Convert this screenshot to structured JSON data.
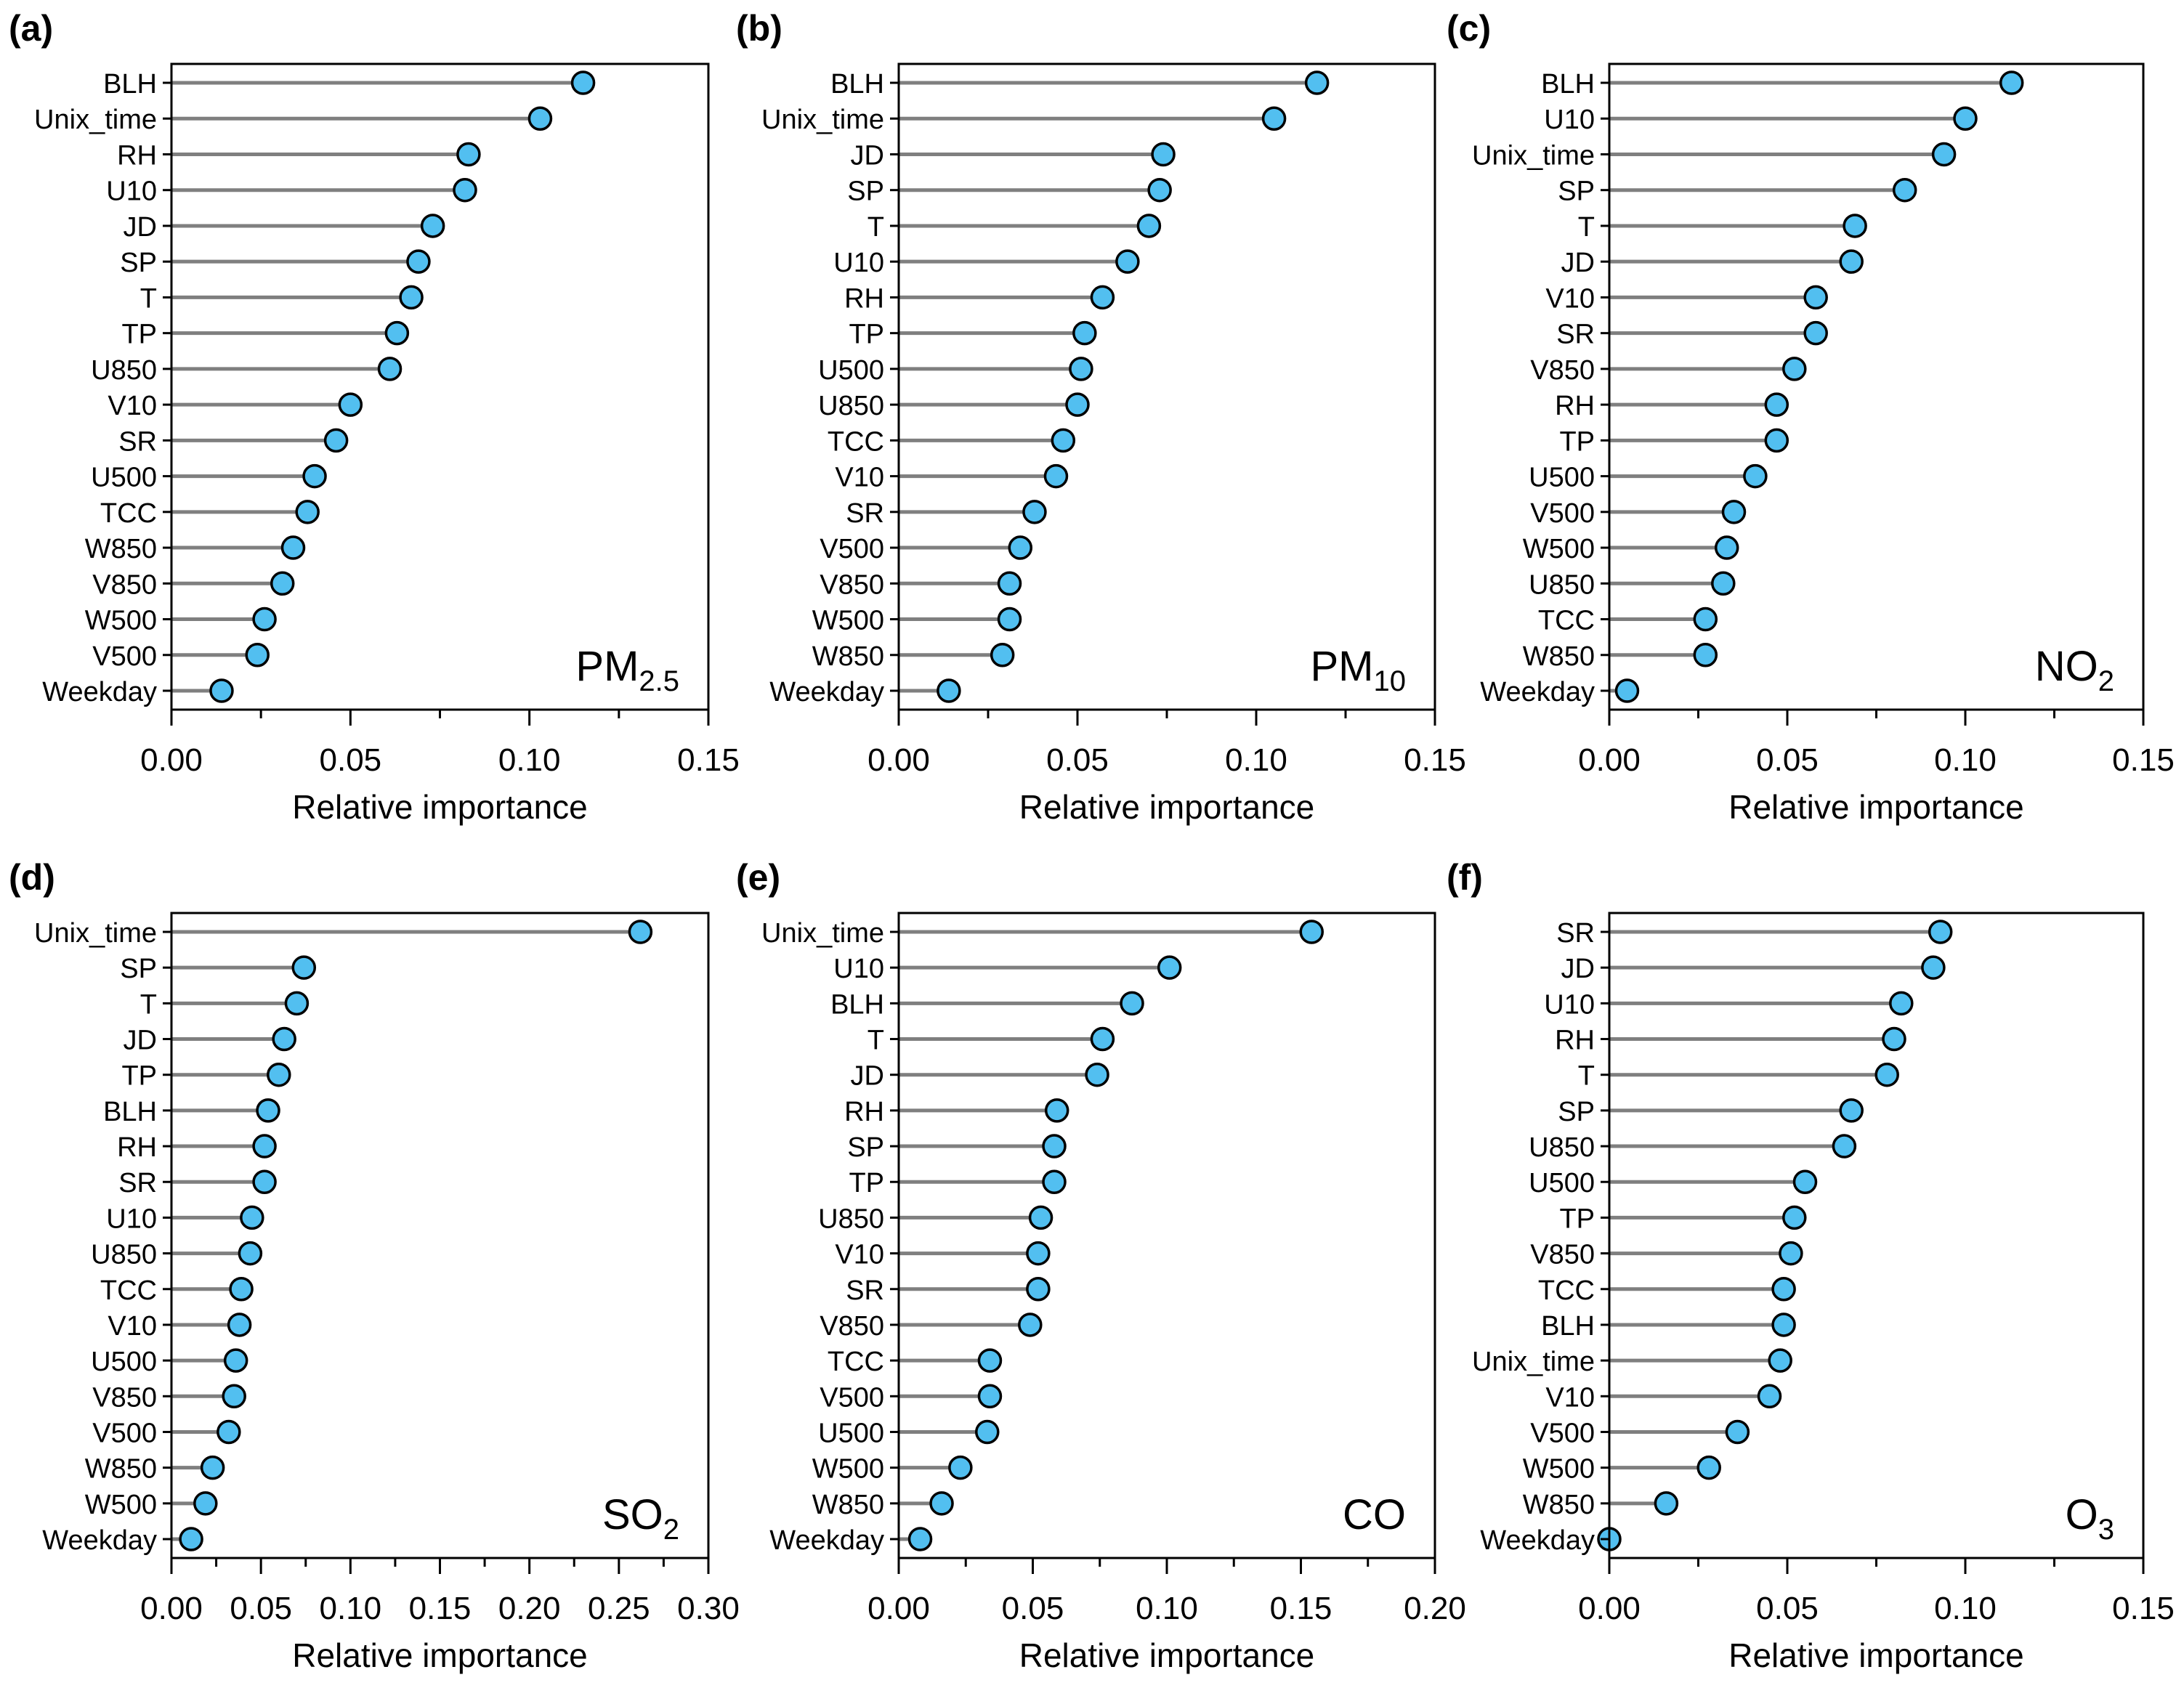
{
  "chart_data": [
    {
      "type": "lollipop",
      "panel": "(a)",
      "pollutant": "PM",
      "pollutant_sub": "2.5",
      "xlabel": "Relative importance",
      "xlim": [
        0,
        0.15
      ],
      "xticks": [
        "0.00",
        "0.05",
        "0.10",
        "0.15"
      ],
      "categories": [
        "BLH",
        "Unix_time",
        "RH",
        "U10",
        "JD",
        "SP",
        "T",
        "TP",
        "U850",
        "V10",
        "SR",
        "U500",
        "TCC",
        "W850",
        "V850",
        "W500",
        "V500",
        "Weekday"
      ],
      "values": [
        0.115,
        0.103,
        0.083,
        0.082,
        0.073,
        0.069,
        0.067,
        0.063,
        0.061,
        0.05,
        0.046,
        0.04,
        0.038,
        0.034,
        0.031,
        0.026,
        0.024,
        0.014
      ]
    },
    {
      "type": "lollipop",
      "panel": "(b)",
      "pollutant": "PM",
      "pollutant_sub": "10",
      "xlabel": "Relative importance",
      "xlim": [
        0,
        0.15
      ],
      "xticks": [
        "0.00",
        "0.05",
        "0.10",
        "0.15"
      ],
      "categories": [
        "BLH",
        "Unix_time",
        "JD",
        "SP",
        "T",
        "U10",
        "RH",
        "TP",
        "U500",
        "U850",
        "TCC",
        "V10",
        "SR",
        "V500",
        "V850",
        "W500",
        "W850",
        "Weekday"
      ],
      "values": [
        0.117,
        0.105,
        0.074,
        0.073,
        0.07,
        0.064,
        0.057,
        0.052,
        0.051,
        0.05,
        0.046,
        0.044,
        0.038,
        0.034,
        0.031,
        0.031,
        0.029,
        0.014
      ]
    },
    {
      "type": "lollipop",
      "panel": "(c)",
      "pollutant": "NO",
      "pollutant_sub": "2",
      "xlabel": "Relative importance",
      "xlim": [
        0,
        0.15
      ],
      "xticks": [
        "0.00",
        "0.05",
        "0.10",
        "0.15"
      ],
      "categories": [
        "BLH",
        "U10",
        "Unix_time",
        "SP",
        "T",
        "JD",
        "V10",
        "SR",
        "V850",
        "RH",
        "TP",
        "U500",
        "V500",
        "W500",
        "U850",
        "TCC",
        "W850",
        "Weekday"
      ],
      "values": [
        0.113,
        0.1,
        0.094,
        0.083,
        0.069,
        0.068,
        0.058,
        0.058,
        0.052,
        0.047,
        0.047,
        0.041,
        0.035,
        0.033,
        0.032,
        0.027,
        0.027,
        0.005
      ]
    },
    {
      "type": "lollipop",
      "panel": "(d)",
      "pollutant": "SO",
      "pollutant_sub": "2",
      "xlabel": "Relative importance",
      "xlim": [
        0,
        0.3
      ],
      "xticks": [
        "0.00",
        "0.05",
        "0.10",
        "0.15",
        "0.20",
        "0.25",
        "0.30"
      ],
      "categories": [
        "Unix_time",
        "SP",
        "T",
        "JD",
        "TP",
        "BLH",
        "RH",
        "SR",
        "U10",
        "U850",
        "TCC",
        "V10",
        "U500",
        "V850",
        "V500",
        "W850",
        "W500",
        "Weekday"
      ],
      "values": [
        0.262,
        0.074,
        0.07,
        0.063,
        0.06,
        0.054,
        0.052,
        0.052,
        0.045,
        0.044,
        0.039,
        0.038,
        0.036,
        0.035,
        0.032,
        0.023,
        0.019,
        0.011
      ]
    },
    {
      "type": "lollipop",
      "panel": "(e)",
      "pollutant": "CO",
      "pollutant_sub": "",
      "xlabel": "Relative importance",
      "xlim": [
        0,
        0.2
      ],
      "xticks": [
        "0.00",
        "0.05",
        "0.10",
        "0.15",
        "0.20"
      ],
      "categories": [
        "Unix_time",
        "U10",
        "BLH",
        "T",
        "JD",
        "RH",
        "SP",
        "TP",
        "U850",
        "V10",
        "SR",
        "V850",
        "TCC",
        "V500",
        "U500",
        "W500",
        "W850",
        "Weekday"
      ],
      "values": [
        0.154,
        0.101,
        0.087,
        0.076,
        0.074,
        0.059,
        0.058,
        0.058,
        0.053,
        0.052,
        0.052,
        0.049,
        0.034,
        0.034,
        0.033,
        0.023,
        0.016,
        0.008
      ]
    },
    {
      "type": "lollipop",
      "panel": "(f)",
      "pollutant": "O",
      "pollutant_sub": "3",
      "xlabel": "Relative importance",
      "xlim": [
        0,
        0.15
      ],
      "xticks": [
        "0.00",
        "0.05",
        "0.10",
        "0.15"
      ],
      "categories": [
        "SR",
        "JD",
        "U10",
        "RH",
        "T",
        "SP",
        "U850",
        "U500",
        "TP",
        "V850",
        "TCC",
        "BLH",
        "Unix_time",
        "V10",
        "V500",
        "W500",
        "W850",
        "Weekday"
      ],
      "values": [
        0.093,
        0.091,
        0.082,
        0.08,
        0.078,
        0.068,
        0.066,
        0.055,
        0.052,
        0.051,
        0.049,
        0.049,
        0.048,
        0.045,
        0.036,
        0.028,
        0.016,
        0.0
      ]
    }
  ]
}
